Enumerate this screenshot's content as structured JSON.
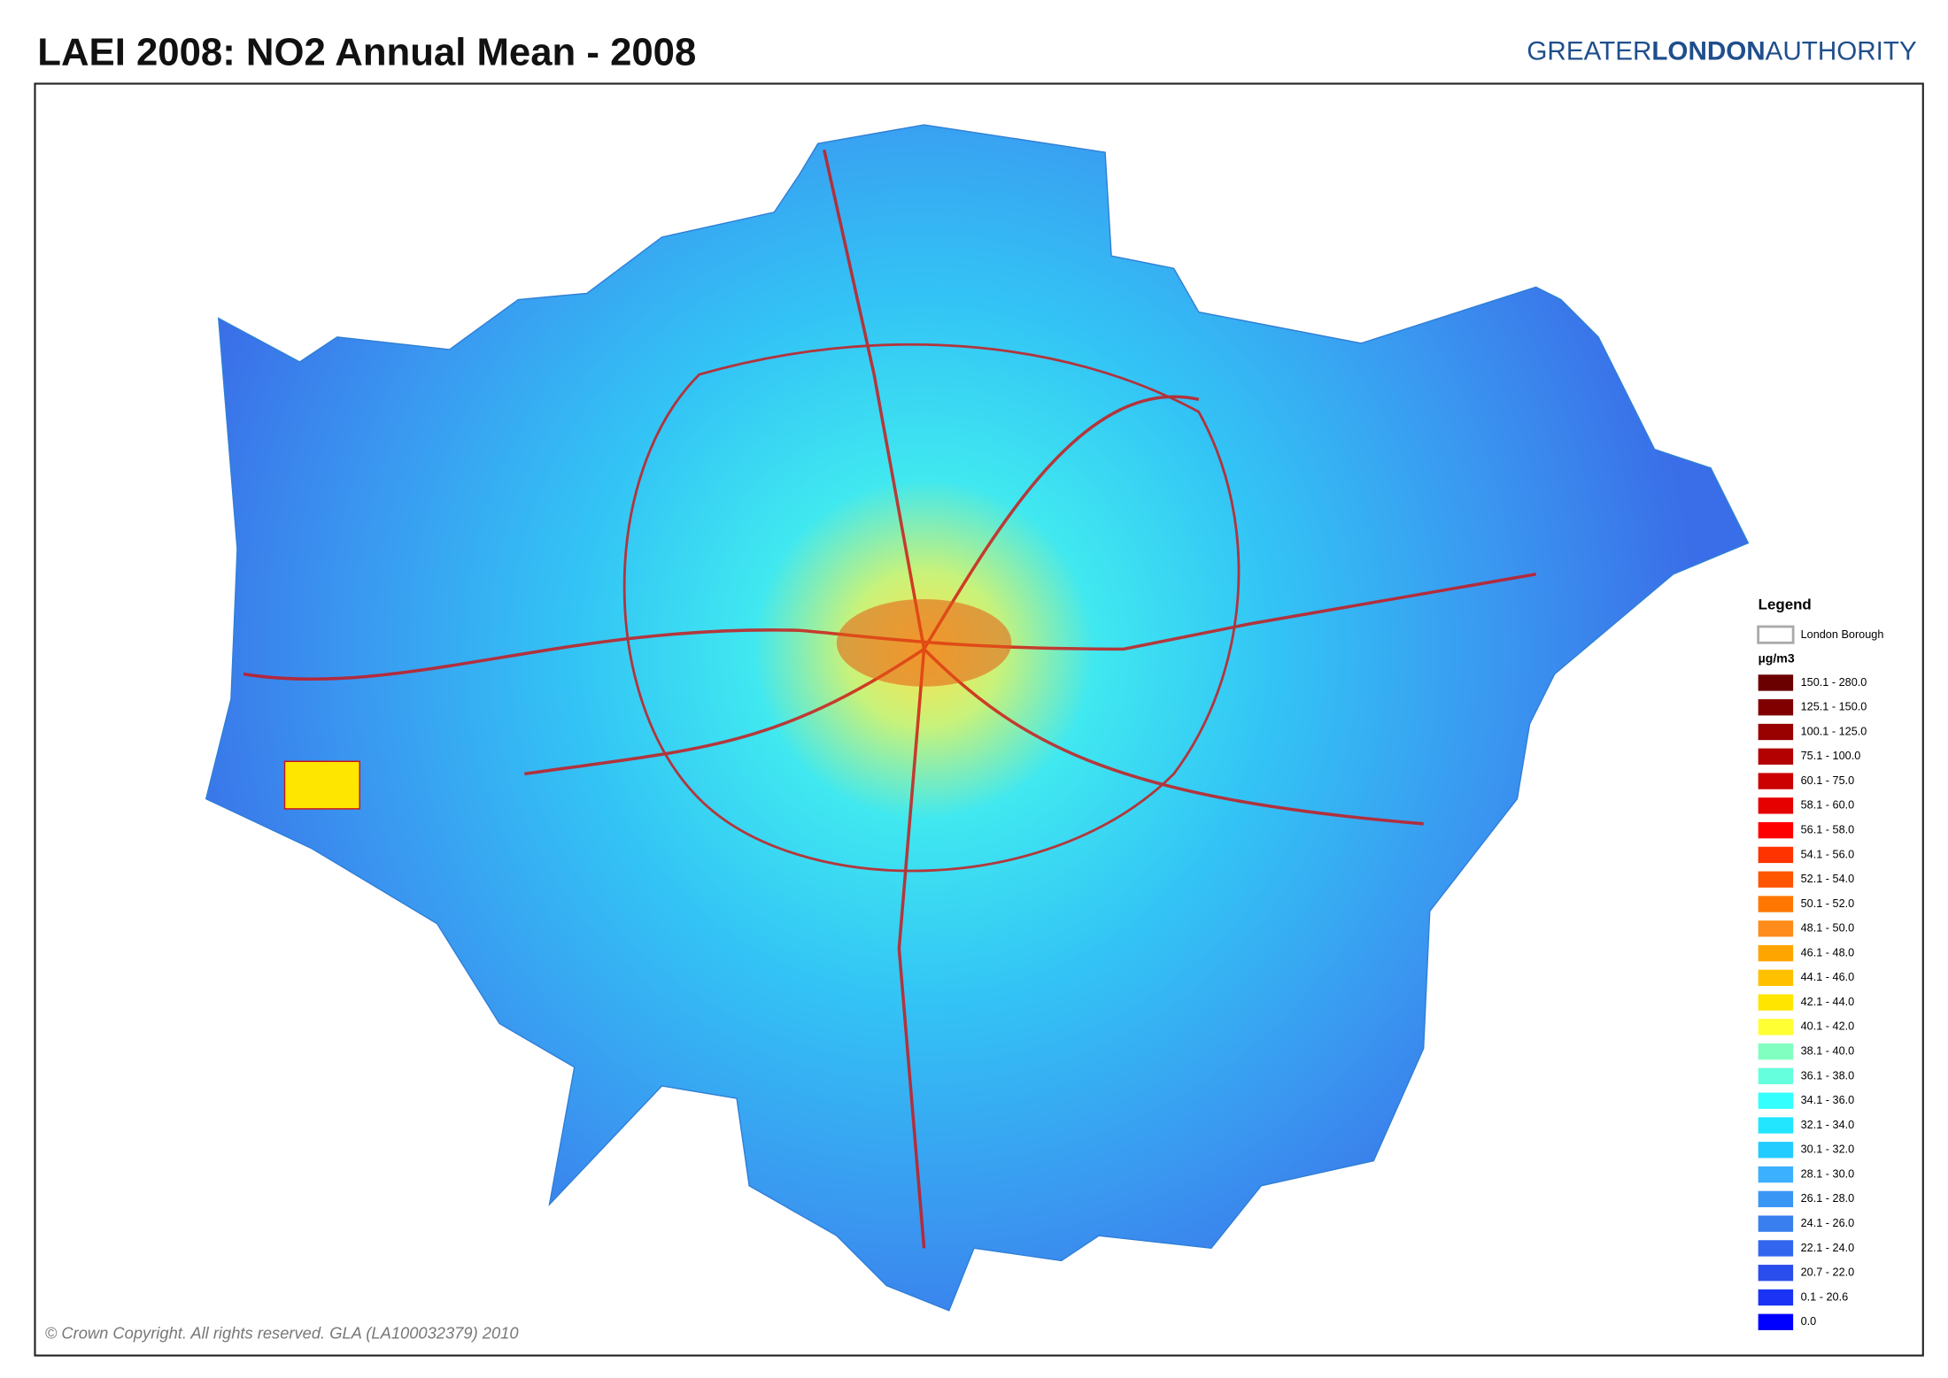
{
  "header": {
    "title": "LAEI 2008: NO2 Annual Mean - 2008",
    "brand": [
      "GREATER",
      "LONDON",
      "AUTHORITY"
    ]
  },
  "legend": {
    "title": "Legend",
    "boundary": "London Borough",
    "unit": "µg/m3",
    "items": [
      {
        "label": "150.1 - 280.0",
        "color": "#6b0000"
      },
      {
        "label": "125.1 - 150.0",
        "color": "#800000"
      },
      {
        "label": "100.1 - 125.0",
        "color": "#990000"
      },
      {
        "label": "75.1 - 100.0",
        "color": "#b30000"
      },
      {
        "label": "60.1 - 75.0",
        "color": "#cc0000"
      },
      {
        "label": "58.1 - 60.0",
        "color": "#e60000"
      },
      {
        "label": "56.1 - 58.0",
        "color": "#ff0000"
      },
      {
        "label": "54.1 - 56.0",
        "color": "#ff3300"
      },
      {
        "label": "52.1 - 54.0",
        "color": "#ff5500"
      },
      {
        "label": "50.1 - 52.0",
        "color": "#ff7700"
      },
      {
        "label": "48.1 - 50.0",
        "color": "#ff8c1a"
      },
      {
        "label": "46.1 - 48.0",
        "color": "#ffa500"
      },
      {
        "label": "44.1 - 46.0",
        "color": "#ffc000"
      },
      {
        "label": "42.1 - 44.0",
        "color": "#ffe500"
      },
      {
        "label": "40.1 - 42.0",
        "color": "#ffff33"
      },
      {
        "label": "38.1 - 40.0",
        "color": "#80ffc0"
      },
      {
        "label": "36.1 - 38.0",
        "color": "#66ffdd"
      },
      {
        "label": "34.1 - 36.0",
        "color": "#33ffff"
      },
      {
        "label": "32.1 - 34.0",
        "color": "#22e6ff"
      },
      {
        "label": "30.1 - 32.0",
        "color": "#22ccff"
      },
      {
        "label": "28.1 - 30.0",
        "color": "#3ab0ff"
      },
      {
        "label": "26.1 - 28.0",
        "color": "#3a96f5"
      },
      {
        "label": "24.1 - 26.0",
        "color": "#3a7ff0"
      },
      {
        "label": "22.1 - 24.0",
        "color": "#3366ee"
      },
      {
        "label": "20.7 - 22.0",
        "color": "#2a4dee"
      },
      {
        "label": "0.1 - 20.6",
        "color": "#1a33f5"
      },
      {
        "label": "0.0",
        "color": "#0000ff"
      }
    ]
  },
  "footer": {
    "copyright": "© Crown Copyright. All rights reserved. GLA (LA100032379) 2010"
  }
}
